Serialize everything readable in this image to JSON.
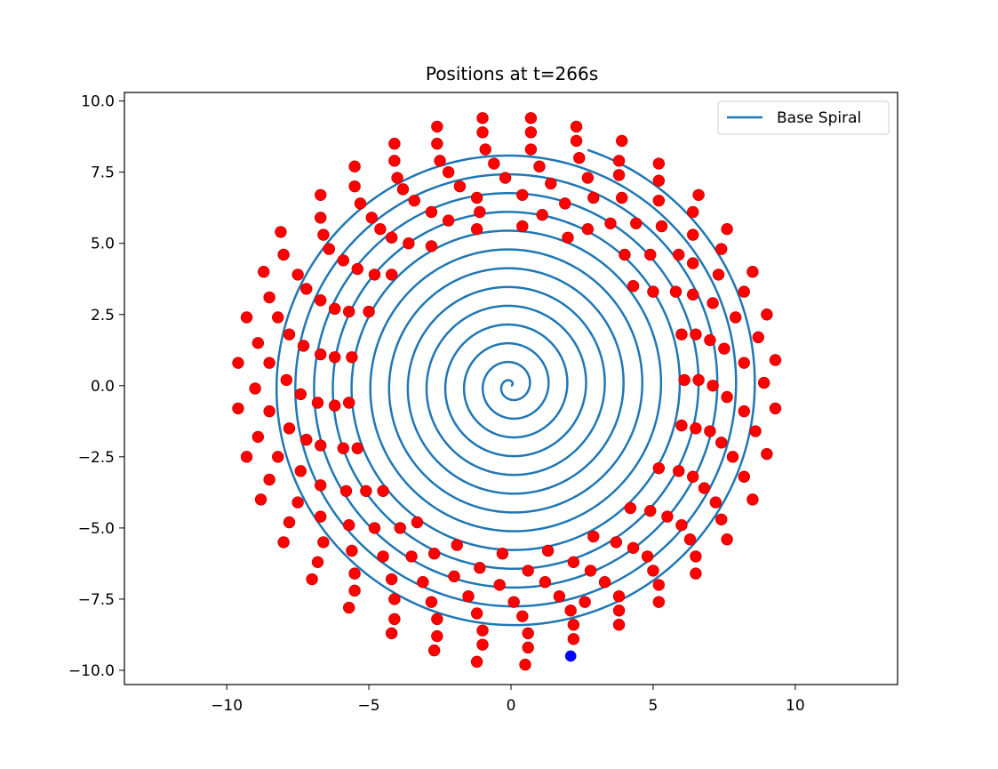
{
  "chart_data": {
    "type": "scatter",
    "title": "Positions at t=266s",
    "xlabel": "",
    "ylabel": "",
    "xlim": [
      -13.6,
      13.6
    ],
    "ylim": [
      -10.5,
      10.3
    ],
    "xticks": [
      -10,
      -5,
      0,
      5,
      10
    ],
    "yticks": [
      -10.0,
      -7.5,
      -5.0,
      -2.5,
      0.0,
      2.5,
      5.0,
      7.5,
      10.0
    ],
    "xtick_labels": [
      "−10",
      "−5",
      "0",
      "5",
      "10"
    ],
    "ytick_labels": [
      "−10.0",
      "−7.5",
      "−5.0",
      "−2.5",
      "0.0",
      "2.5",
      "5.0",
      "7.5",
      "10.0"
    ],
    "grid": false,
    "legend": {
      "placement": "top-right",
      "entries": [
        "Base Spiral"
      ]
    },
    "series": [
      {
        "name": "Base Spiral",
        "kind": "line",
        "color": "#1f77b4",
        "curve": {
          "form": "archimedean spiral r = 0.105 * theta",
          "theta_max_turns": 13.2
        }
      },
      {
        "kind": "scatter",
        "color": "#ff0000",
        "edgecolor": "#cc0000",
        "points": [
          [
            -1.0,
            9.4
          ],
          [
            0.7,
            9.4
          ],
          [
            -2.6,
            9.1
          ],
          [
            2.3,
            9.1
          ],
          [
            -4.1,
            8.5
          ],
          [
            3.9,
            8.6
          ],
          [
            -1.0,
            8.9
          ],
          [
            0.7,
            8.9
          ],
          [
            -2.6,
            8.5
          ],
          [
            2.3,
            8.6
          ],
          [
            -0.9,
            8.3
          ],
          [
            0.7,
            8.3
          ],
          [
            -4.1,
            7.9
          ],
          [
            3.8,
            7.9
          ],
          [
            -2.5,
            7.9
          ],
          [
            2.4,
            8.0
          ],
          [
            -5.5,
            7.7
          ],
          [
            5.2,
            7.8
          ],
          [
            -0.6,
            7.8
          ],
          [
            1.0,
            7.7
          ],
          [
            -4.0,
            7.3
          ],
          [
            3.8,
            7.4
          ],
          [
            -2.2,
            7.5
          ],
          [
            2.7,
            7.3
          ],
          [
            -5.5,
            7.0
          ],
          [
            5.2,
            7.2
          ],
          [
            -0.2,
            7.3
          ],
          [
            1.4,
            7.1
          ],
          [
            -3.8,
            6.9
          ],
          [
            -1.8,
            7.0
          ],
          [
            3.9,
            6.6
          ],
          [
            2.9,
            6.6
          ],
          [
            -6.7,
            6.7
          ],
          [
            6.6,
            6.7
          ],
          [
            -5.3,
            6.4
          ],
          [
            5.2,
            6.5
          ],
          [
            -1.2,
            6.6
          ],
          [
            0.4,
            6.7
          ],
          [
            -3.4,
            6.5
          ],
          [
            1.9,
            6.4
          ],
          [
            -2.8,
            6.1
          ],
          [
            6.4,
            6.1
          ],
          [
            -4.9,
            5.9
          ],
          [
            3.5,
            5.7
          ],
          [
            -6.7,
            5.9
          ],
          [
            -2.2,
            5.8
          ],
          [
            1.1,
            6.0
          ],
          [
            -1.1,
            6.1
          ],
          [
            -4.6,
            5.5
          ],
          [
            4.4,
            5.7
          ],
          [
            -8.1,
            5.4
          ],
          [
            7.6,
            5.5
          ],
          [
            -1.2,
            5.5
          ],
          [
            0.4,
            5.6
          ],
          [
            5.3,
            5.6
          ],
          [
            2.7,
            5.5
          ],
          [
            -6.6,
            5.3
          ],
          [
            -4.2,
            5.2
          ],
          [
            -3.6,
            5.0
          ],
          [
            -2.8,
            4.9
          ],
          [
            2.0,
            5.2
          ],
          [
            6.4,
            5.3
          ],
          [
            -8.0,
            4.6
          ],
          [
            -6.4,
            4.8
          ],
          [
            4.0,
            4.6
          ],
          [
            4.9,
            4.6
          ],
          [
            5.9,
            4.6
          ],
          [
            7.4,
            4.8
          ],
          [
            -5.9,
            4.4
          ],
          [
            -5.4,
            4.1
          ],
          [
            -4.8,
            3.9
          ],
          [
            -4.2,
            3.9
          ],
          [
            6.4,
            4.3
          ],
          [
            8.5,
            4.0
          ],
          [
            -8.7,
            4.0
          ],
          [
            -7.5,
            3.9
          ],
          [
            4.3,
            3.5
          ],
          [
            5.0,
            3.3
          ],
          [
            5.8,
            3.3
          ],
          [
            7.3,
            3.9
          ],
          [
            -7.2,
            3.4
          ],
          [
            -8.5,
            3.1
          ],
          [
            6.4,
            3.2
          ],
          [
            8.2,
            3.3
          ],
          [
            -6.7,
            3.0
          ],
          [
            -6.2,
            2.7
          ],
          [
            -5.7,
            2.6
          ],
          [
            -5.0,
            2.6
          ],
          [
            7.1,
            2.9
          ],
          [
            -9.3,
            2.4
          ],
          [
            -8.2,
            2.4
          ],
          [
            7.9,
            2.4
          ],
          [
            9.0,
            2.5
          ],
          [
            -7.8,
            1.8
          ],
          [
            6.0,
            1.8
          ],
          [
            6.5,
            1.8
          ],
          [
            7.0,
            1.6
          ],
          [
            -8.9,
            1.5
          ],
          [
            -7.3,
            1.4
          ],
          [
            7.5,
            1.3
          ],
          [
            8.7,
            1.7
          ],
          [
            -6.7,
            1.1
          ],
          [
            -6.2,
            1.0
          ],
          [
            -5.6,
            1.0
          ],
          [
            -9.6,
            0.8
          ],
          [
            -8.5,
            0.8
          ],
          [
            8.2,
            0.8
          ],
          [
            9.3,
            0.9
          ],
          [
            -7.9,
            0.2
          ],
          [
            6.1,
            0.2
          ],
          [
            6.6,
            0.2
          ],
          [
            7.1,
            0.0
          ],
          [
            -9.0,
            -0.1
          ],
          [
            -7.4,
            -0.3
          ],
          [
            7.6,
            -0.4
          ],
          [
            8.9,
            0.1
          ],
          [
            -6.8,
            -0.6
          ],
          [
            -6.2,
            -0.7
          ],
          [
            -5.7,
            -0.6
          ],
          [
            -9.6,
            -0.8
          ],
          [
            -8.5,
            -0.9
          ],
          [
            8.2,
            -0.9
          ],
          [
            9.3,
            -0.8
          ],
          [
            -7.8,
            -1.5
          ],
          [
            6.0,
            -1.4
          ],
          [
            6.5,
            -1.5
          ],
          [
            7.0,
            -1.6
          ],
          [
            -8.9,
            -1.8
          ],
          [
            -7.2,
            -1.9
          ],
          [
            7.4,
            -2.0
          ],
          [
            8.6,
            -1.6
          ],
          [
            -6.7,
            -2.1
          ],
          [
            -5.9,
            -2.2
          ],
          [
            -5.4,
            -2.2
          ],
          [
            -9.3,
            -2.5
          ],
          [
            -8.2,
            -2.5
          ],
          [
            7.8,
            -2.5
          ],
          [
            9.0,
            -2.4
          ],
          [
            -7.4,
            -3.0
          ],
          [
            5.2,
            -2.9
          ],
          [
            5.9,
            -3.0
          ],
          [
            6.4,
            -3.2
          ],
          [
            -8.5,
            -3.3
          ],
          [
            8.2,
            -3.2
          ],
          [
            -6.7,
            -3.5
          ],
          [
            -5.8,
            -3.7
          ],
          [
            -5.1,
            -3.7
          ],
          [
            -4.5,
            -3.7
          ],
          [
            6.8,
            -3.6
          ],
          [
            -8.8,
            -4.0
          ],
          [
            -7.5,
            -4.1
          ],
          [
            7.2,
            -4.1
          ],
          [
            8.5,
            -4.0
          ],
          [
            -6.7,
            -4.6
          ],
          [
            4.2,
            -4.3
          ],
          [
            4.9,
            -4.4
          ],
          [
            5.5,
            -4.6
          ],
          [
            6.0,
            -4.9
          ],
          [
            7.4,
            -4.7
          ],
          [
            -5.7,
            -4.9
          ],
          [
            -4.8,
            -5.0
          ],
          [
            -3.9,
            -5.0
          ],
          [
            -3.3,
            -4.8
          ],
          [
            -7.8,
            -4.8
          ],
          [
            -8.0,
            -5.5
          ],
          [
            7.6,
            -5.4
          ],
          [
            6.3,
            -5.4
          ],
          [
            2.9,
            -5.3
          ],
          [
            -6.6,
            -5.5
          ],
          [
            3.7,
            -5.5
          ],
          [
            4.3,
            -5.7
          ],
          [
            4.8,
            -6.0
          ],
          [
            -2.7,
            -5.9
          ],
          [
            -1.9,
            -5.6
          ],
          [
            -5.6,
            -5.8
          ],
          [
            -4.5,
            -6.0
          ],
          [
            -3.5,
            -6.0
          ],
          [
            1.3,
            -5.8
          ],
          [
            2.2,
            -6.2
          ],
          [
            6.5,
            -6.0
          ],
          [
            -6.8,
            -6.2
          ],
          [
            -1.1,
            -6.4
          ],
          [
            -0.3,
            -5.9
          ],
          [
            0.6,
            -6.5
          ],
          [
            2.8,
            -6.5
          ],
          [
            5.0,
            -6.5
          ],
          [
            6.5,
            -6.6
          ],
          [
            -5.5,
            -6.6
          ],
          [
            -4.2,
            -6.8
          ],
          [
            -3.1,
            -6.9
          ],
          [
            -2.0,
            -6.7
          ],
          [
            3.3,
            -6.9
          ],
          [
            -7.0,
            -6.8
          ],
          [
            -0.4,
            -7.0
          ],
          [
            1.2,
            -6.9
          ],
          [
            5.2,
            -7.0
          ],
          [
            -5.5,
            -7.2
          ],
          [
            -4.1,
            -7.5
          ],
          [
            -1.5,
            -7.4
          ],
          [
            1.7,
            -7.4
          ],
          [
            3.8,
            -7.4
          ],
          [
            5.2,
            -7.6
          ],
          [
            -2.8,
            -7.6
          ],
          [
            0.1,
            -7.6
          ],
          [
            2.6,
            -7.6
          ],
          [
            -5.7,
            -7.8
          ],
          [
            -4.1,
            -8.2
          ],
          [
            -2.6,
            -8.2
          ],
          [
            -1.2,
            -8.0
          ],
          [
            0.4,
            -8.1
          ],
          [
            2.1,
            -7.9
          ],
          [
            3.8,
            -7.9
          ],
          [
            -4.2,
            -8.7
          ],
          [
            -2.6,
            -8.8
          ],
          [
            -1.0,
            -8.6
          ],
          [
            0.6,
            -8.7
          ],
          [
            2.2,
            -8.4
          ],
          [
            3.8,
            -8.4
          ],
          [
            -2.7,
            -9.3
          ],
          [
            -1.0,
            -9.1
          ],
          [
            0.6,
            -9.2
          ],
          [
            2.2,
            -8.9
          ],
          [
            -1.2,
            -9.7
          ],
          [
            0.5,
            -9.8
          ]
        ]
      },
      {
        "kind": "scatter",
        "color": "#0000ff",
        "points": [
          [
            2.1,
            -9.5
          ]
        ]
      }
    ]
  }
}
